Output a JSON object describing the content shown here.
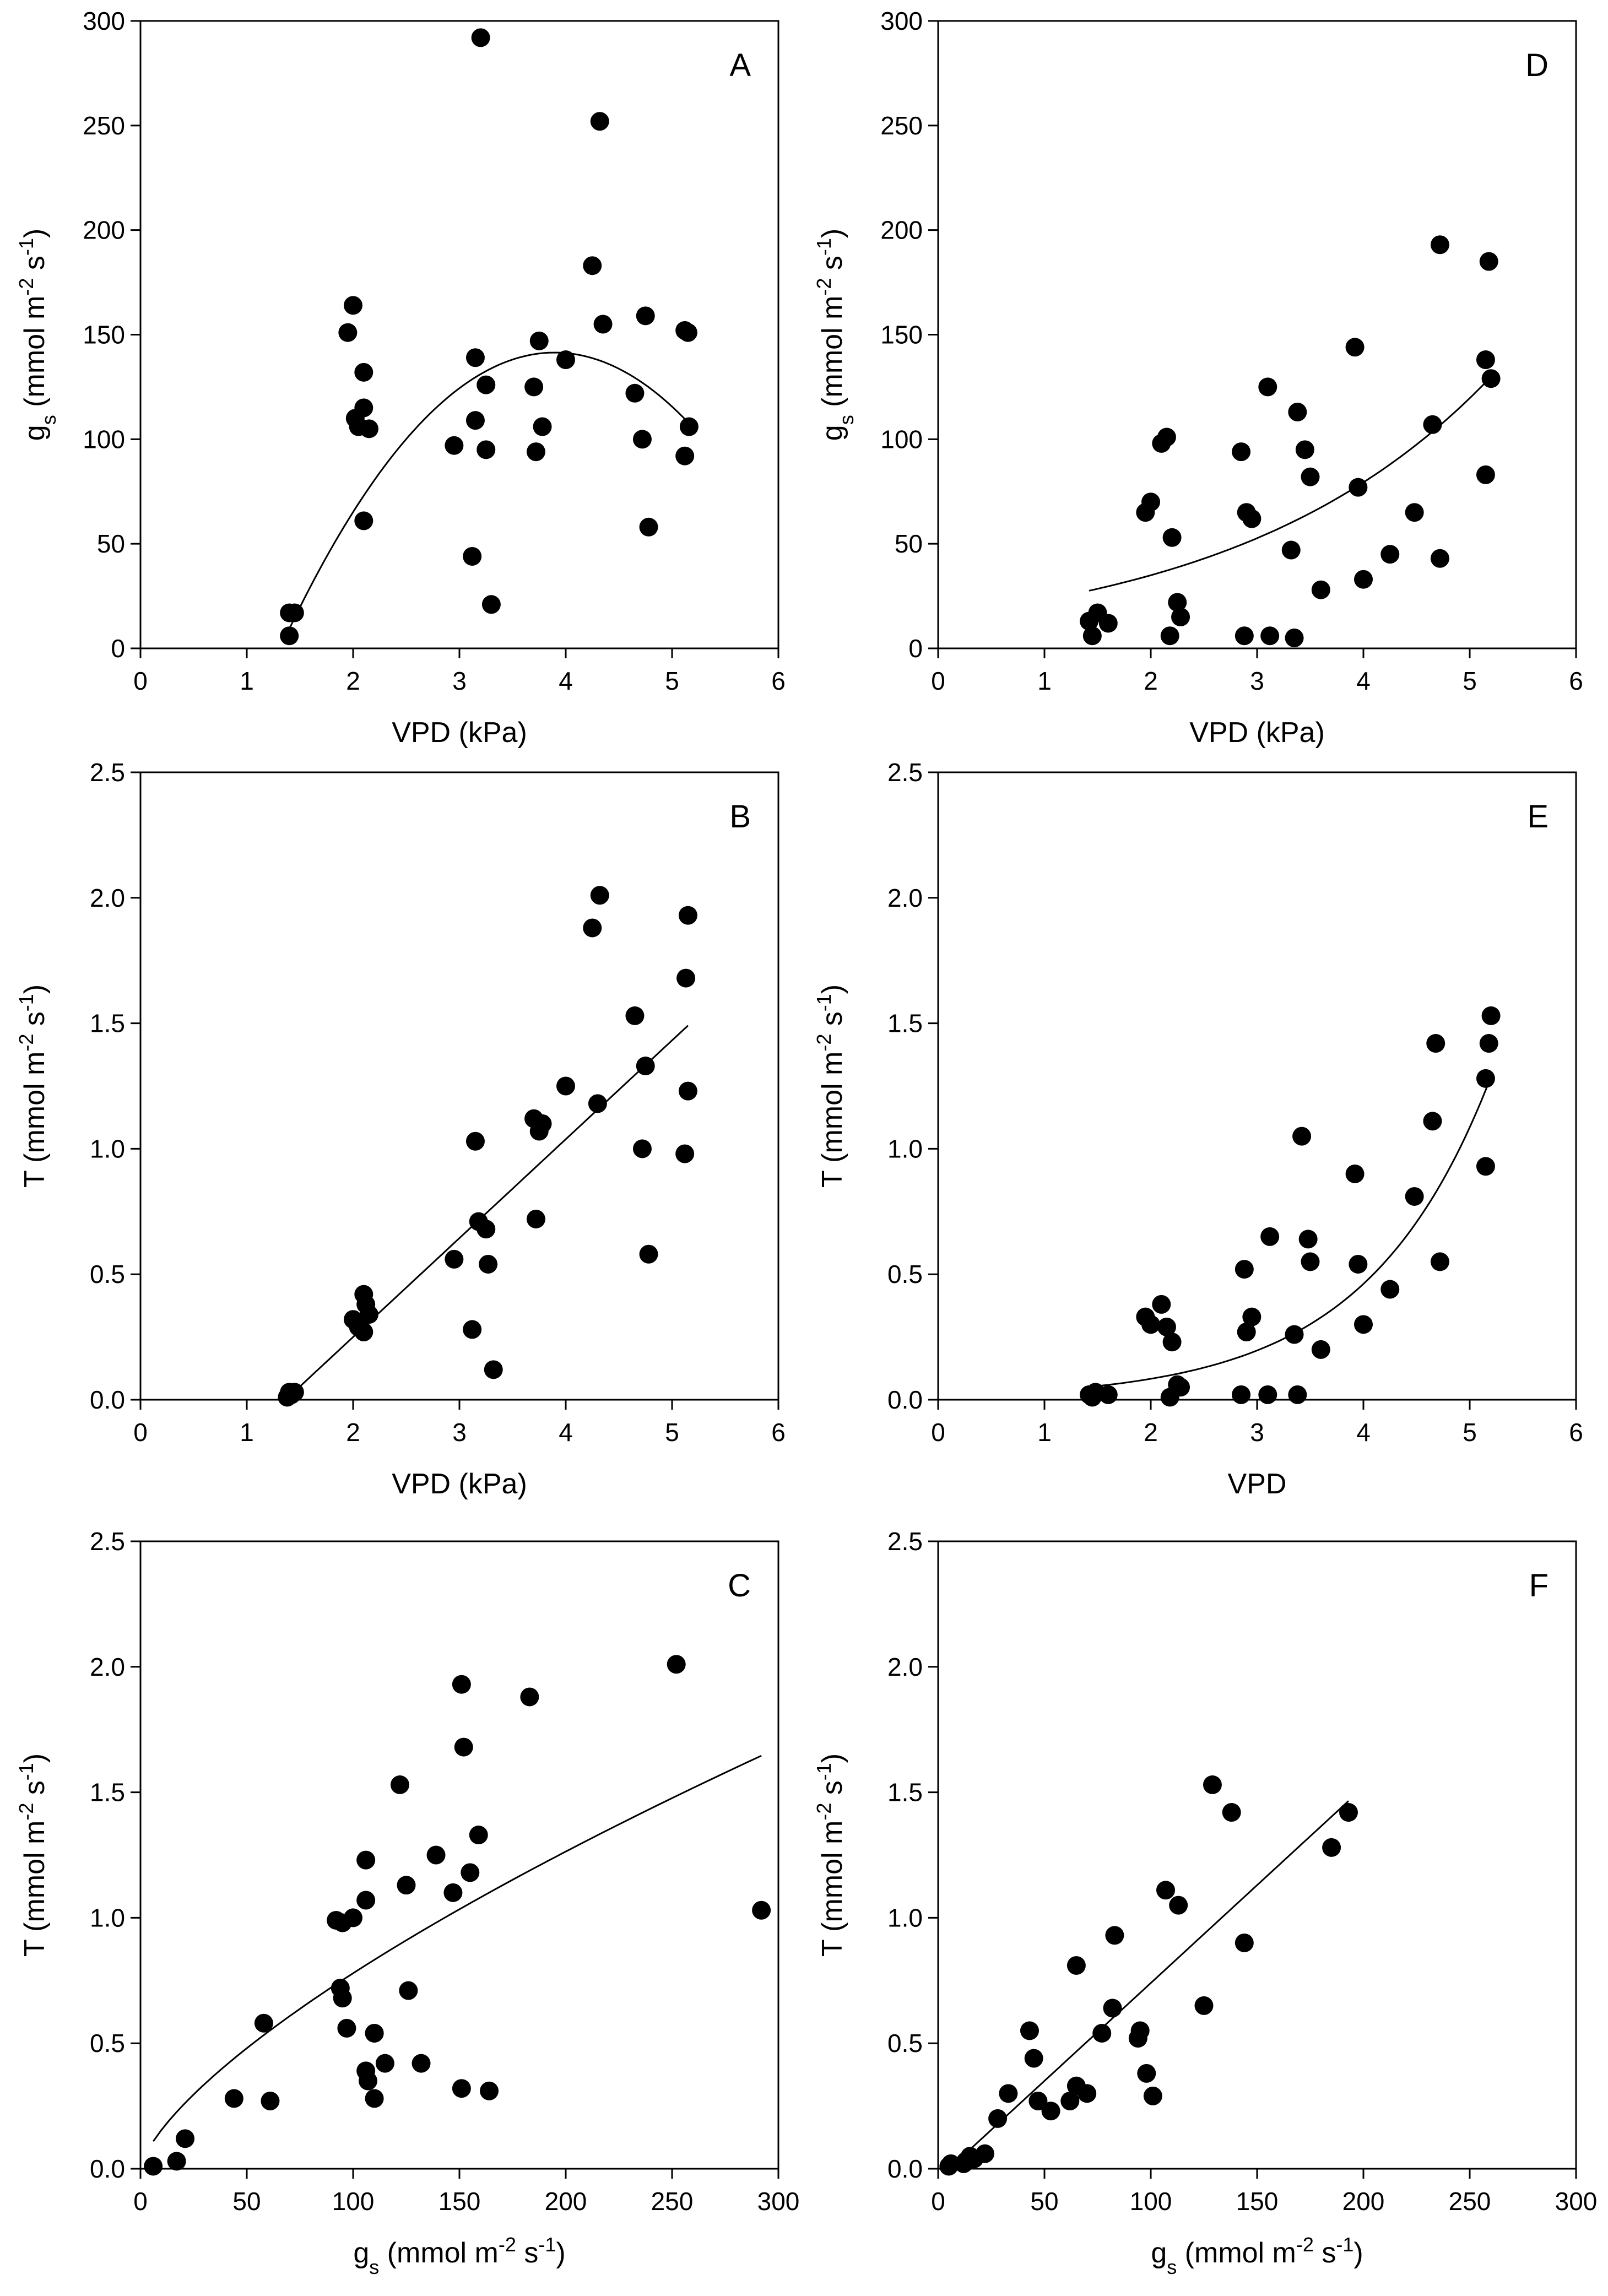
{
  "chart_data": [
    {
      "panel": "A",
      "type": "scatter",
      "xlabel": "VPD (kPa)",
      "ylabel_main": "g",
      "ylabel_sub": "s",
      "ylabel_rest": " (mmol m",
      "ylabel_exp1": "-2",
      "ylabel_mid": " s",
      "ylabel_exp2": "-1",
      "ylabel_end": ")",
      "xlim": [
        0,
        6
      ],
      "ylim": [
        0,
        300
      ],
      "xticks": [
        "0",
        "1",
        "2",
        "3",
        "4",
        "5",
        "6"
      ],
      "yticks": [
        "0",
        "50",
        "100",
        "150",
        "200",
        "250",
        "300"
      ],
      "x": [
        1.4,
        1.45,
        1.4,
        2.0,
        1.95,
        2.02,
        2.05,
        2.1,
        2.1,
        2.15,
        2.1,
        3.2,
        3.15,
        3.25,
        3.15,
        2.95,
        3.25,
        3.12,
        3.3,
        4.32,
        4.25,
        4.35,
        3.75,
        3.7,
        4.0,
        3.78,
        3.72,
        4.75,
        4.65,
        4.72,
        4.78,
        5.12,
        5.15,
        5.16,
        5.12
      ],
      "y": [
        17,
        17,
        6,
        164,
        151,
        110,
        106,
        132,
        115,
        105,
        61,
        292,
        139,
        126,
        109,
        97,
        95,
        44,
        21,
        252,
        183,
        155,
        147,
        125,
        138,
        106,
        94,
        159,
        122,
        100,
        58,
        152,
        151,
        106,
        92
      ],
      "fit": {
        "kind": "quadratic",
        "coef": [
          -180.4,
          165.2,
          -21.2
        ],
        "xrange": [
          1.4,
          5.15
        ]
      }
    },
    {
      "panel": "B",
      "type": "scatter",
      "xlabel": "VPD (kPa)",
      "ylabel_main": "T",
      "ylabel_sub": "",
      "ylabel_rest": " (mmol m",
      "ylabel_exp1": "-2",
      "ylabel_mid": " s",
      "ylabel_exp2": "-1",
      "ylabel_end": ")",
      "xlim": [
        0,
        6
      ],
      "ylim": [
        0,
        2.5
      ],
      "xticks": [
        "0",
        "1",
        "2",
        "3",
        "4",
        "5",
        "6"
      ],
      "yticks": [
        "0.0",
        "0.5",
        "1.0",
        "1.5",
        "2.0",
        "2.5"
      ],
      "x": [
        1.4,
        1.45,
        1.38,
        1.42,
        2.0,
        2.05,
        2.1,
        2.1,
        2.12,
        2.15,
        3.15,
        3.18,
        3.25,
        2.95,
        3.27,
        3.12,
        3.32,
        4.32,
        4.25,
        5.15,
        5.13,
        4.65,
        3.7,
        3.78,
        3.75,
        3.72,
        4.3,
        4.0,
        4.75,
        4.72,
        5.15,
        5.12,
        4.78
      ],
      "y": [
        0.03,
        0.03,
        0.01,
        0.02,
        0.32,
        0.29,
        0.27,
        0.42,
        0.38,
        0.34,
        1.03,
        0.71,
        0.68,
        0.56,
        0.54,
        0.28,
        0.12,
        2.01,
        1.88,
        1.93,
        1.68,
        1.53,
        1.12,
        1.1,
        1.07,
        0.72,
        1.18,
        1.25,
        1.33,
        1.0,
        1.23,
        0.98,
        0.58
      ],
      "fit": {
        "kind": "linear",
        "coef": [
          -0.538,
          0.394
        ],
        "xrange": [
          1.4,
          5.15
        ]
      }
    },
    {
      "panel": "C",
      "type": "scatter",
      "xlabel_main": "g",
      "xlabel_sub": "s",
      "xlabel_rest": " (mmol m",
      "xlabel_exp1": "-2",
      "xlabel_mid": " s",
      "xlabel_exp2": "-1",
      "xlabel_end": ")",
      "ylabel_main": "T",
      "ylabel_sub": "",
      "ylabel_rest": " (mmol m",
      "ylabel_exp1": "-2",
      "ylabel_mid": " s",
      "ylabel_exp2": "-1",
      "ylabel_end": ")",
      "xlim": [
        0,
        300
      ],
      "ylim": [
        0,
        2.5
      ],
      "xticks": [
        "0",
        "50",
        "100",
        "150",
        "200",
        "250",
        "300"
      ],
      "yticks": [
        "0.0",
        "0.5",
        "1.0",
        "1.5",
        "2.0",
        "2.5"
      ],
      "x": [
        6,
        17,
        21,
        44,
        58,
        61,
        92,
        94,
        95,
        97,
        100,
        106,
        106,
        106,
        107,
        110,
        110,
        115,
        122,
        125,
        126,
        132,
        139,
        147,
        151,
        151,
        152,
        155,
        159,
        164,
        183,
        252,
        292,
        95,
        110
      ],
      "y": [
        0.01,
        0.03,
        0.12,
        0.28,
        0.58,
        0.27,
        0.99,
        0.72,
        0.68,
        0.56,
        1.0,
        1.23,
        1.07,
        0.39,
        0.35,
        0.54,
        0.28,
        0.42,
        1.53,
        1.13,
        0.71,
        0.42,
        1.25,
        1.1,
        1.93,
        0.32,
        1.68,
        1.18,
        1.33,
        0.31,
        1.88,
        2.01,
        1.03,
        0.98,
        0.54
      ],
      "fit": {
        "kind": "power",
        "coef": [
          0.0313,
          0.698
        ],
        "xrange": [
          6,
          292
        ]
      }
    },
    {
      "panel": "D",
      "type": "scatter",
      "xlabel": "VPD (kPa)",
      "ylabel_main": "g",
      "ylabel_sub": "s",
      "ylabel_rest": " (mmol m",
      "ylabel_exp1": "-2",
      "ylabel_mid": " s",
      "ylabel_exp2": "-1",
      "ylabel_end": ")",
      "xlim": [
        0,
        6
      ],
      "ylim": [
        0,
        300
      ],
      "xticks": [
        "0",
        "1",
        "2",
        "3",
        "4",
        "5",
        "6"
      ],
      "yticks": [
        "0",
        "50",
        "100",
        "150",
        "200",
        "250",
        "300"
      ],
      "x": [
        1.42,
        1.5,
        1.45,
        1.6,
        1.95,
        2.0,
        2.1,
        2.15,
        2.2,
        2.25,
        2.28,
        2.18,
        2.85,
        2.9,
        2.95,
        2.88,
        3.1,
        3.12,
        3.38,
        3.45,
        3.5,
        3.32,
        3.6,
        3.35,
        3.92,
        3.95,
        4.0,
        4.25,
        4.48,
        4.65,
        4.72,
        4.72,
        5.15,
        5.18,
        5.2,
        5.15
      ],
      "y": [
        13,
        17,
        6,
        12,
        65,
        70,
        98,
        101,
        53,
        22,
        15,
        6,
        94,
        65,
        62,
        6,
        125,
        6,
        113,
        95,
        82,
        47,
        28,
        5,
        144,
        77,
        33,
        45,
        65,
        107,
        193,
        43,
        138,
        185,
        129,
        83
      ],
      "fit": {
        "kind": "exponential",
        "coef": [
          15.4,
          0.41
        ],
        "xrange": [
          1.42,
          5.2
        ]
      }
    },
    {
      "panel": "E",
      "type": "scatter",
      "xlabel": "VPD",
      "ylabel_main": "T",
      "ylabel_sub": "",
      "ylabel_rest": " (mmol m",
      "ylabel_exp1": "-2",
      "ylabel_mid": " s",
      "ylabel_exp2": "-1",
      "ylabel_end": ")",
      "xlim": [
        0,
        6
      ],
      "ylim": [
        0,
        2.5
      ],
      "xticks": [
        "0",
        "1",
        "2",
        "3",
        "4",
        "5",
        "6"
      ],
      "yticks": [
        "0.0",
        "0.5",
        "1.0",
        "1.5",
        "2.0",
        "2.5"
      ],
      "x": [
        1.42,
        1.48,
        1.45,
        1.6,
        1.95,
        2.0,
        2.1,
        2.15,
        2.2,
        2.25,
        2.28,
        2.18,
        2.88,
        2.9,
        2.95,
        2.85,
        3.12,
        3.1,
        3.42,
        3.48,
        3.5,
        3.35,
        3.6,
        3.38,
        3.92,
        3.95,
        4.0,
        4.25,
        4.48,
        4.65,
        4.68,
        4.72,
        5.15,
        5.18,
        5.2,
        5.15
      ],
      "y": [
        0.02,
        0.03,
        0.01,
        0.02,
        0.33,
        0.3,
        0.38,
        0.29,
        0.23,
        0.06,
        0.05,
        0.01,
        0.52,
        0.27,
        0.33,
        0.02,
        0.65,
        0.02,
        1.05,
        0.64,
        0.55,
        0.26,
        0.2,
        0.02,
        0.9,
        0.54,
        0.3,
        0.44,
        0.81,
        1.11,
        1.42,
        0.55,
        0.93,
        1.42,
        1.53,
        1.28
      ],
      "fit": {
        "kind": "exponential",
        "coef": [
          0.0151,
          0.855
        ],
        "xrange": [
          1.42,
          5.2
        ]
      }
    },
    {
      "panel": "F",
      "type": "scatter",
      "xlabel_main": "g",
      "xlabel_sub": "s",
      "xlabel_rest": " (mmol m",
      "xlabel_exp1": "-2",
      "xlabel_mid": " s",
      "xlabel_exp2": "-1",
      "xlabel_end": ")",
      "ylabel_main": "T",
      "ylabel_sub": "",
      "ylabel_rest": " (mmol m",
      "ylabel_exp1": "-2",
      "ylabel_mid": " s",
      "ylabel_exp2": "-1",
      "ylabel_end": ")",
      "xlim": [
        0,
        300
      ],
      "ylim": [
        0,
        2.5
      ],
      "xticks": [
        "0",
        "50",
        "100",
        "150",
        "200",
        "250",
        "300"
      ],
      "yticks": [
        "0.0",
        "0.5",
        "1.0",
        "1.5",
        "2.0",
        "2.5"
      ],
      "x": [
        5,
        6,
        12,
        13,
        15,
        17,
        22,
        28,
        33,
        43,
        45,
        47,
        53,
        62,
        65,
        65,
        70,
        77,
        82,
        83,
        94,
        95,
        98,
        101,
        107,
        113,
        125,
        129,
        138,
        144,
        185,
        193
      ],
      "y": [
        0.01,
        0.02,
        0.02,
        0.03,
        0.05,
        0.04,
        0.06,
        0.2,
        0.3,
        0.55,
        0.44,
        0.27,
        0.23,
        0.27,
        0.33,
        0.81,
        0.3,
        0.54,
        0.64,
        0.93,
        0.52,
        0.55,
        0.38,
        0.29,
        1.11,
        1.05,
        0.65,
        1.53,
        1.42,
        0.9,
        1.28,
        1.42
      ],
      "fit": {
        "kind": "linear",
        "coef": [
          -0.04,
          0.0078
        ],
        "xrange": [
          5,
          193
        ]
      }
    }
  ]
}
